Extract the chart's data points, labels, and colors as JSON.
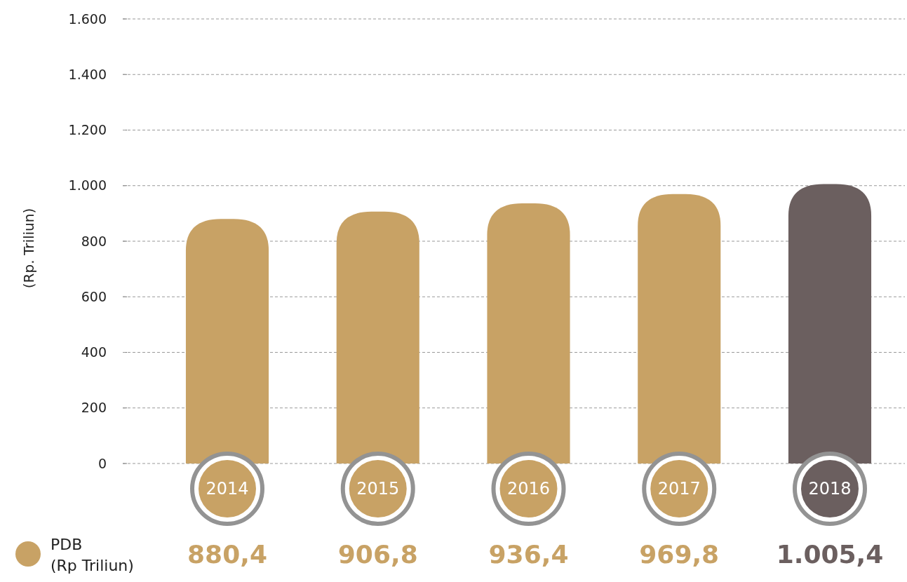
{
  "chart_data": {
    "type": "bar",
    "ylabel": "(Rp. Triliun)",
    "categories": [
      "2014",
      "2015",
      "2016",
      "2017",
      "2018"
    ],
    "series": [
      {
        "name": "PDB (Rp Triliun)",
        "color": "#c8a265",
        "colors": [
          "#c8a265",
          "#c8a265",
          "#c8a265",
          "#c8a265",
          "#6b5f5f"
        ],
        "values": [
          880.4,
          906.8,
          936.4,
          969.8,
          1005.4
        ],
        "value_labels": [
          "880,4",
          "906,8",
          "936,4",
          "969,8",
          "1.005,4"
        ]
      }
    ],
    "ylim": [
      0,
      1600
    ],
    "yticks": [
      0,
      200,
      400,
      600,
      800,
      {
        "value": 1000,
        "label": "1.000"
      },
      {
        "value": 1200,
        "label": "1.200"
      },
      {
        "value": 1400,
        "label": "1.400"
      },
      {
        "value": 1600,
        "label": "1.600"
      }
    ],
    "grid": "y",
    "legend": "bottom left"
  }
}
